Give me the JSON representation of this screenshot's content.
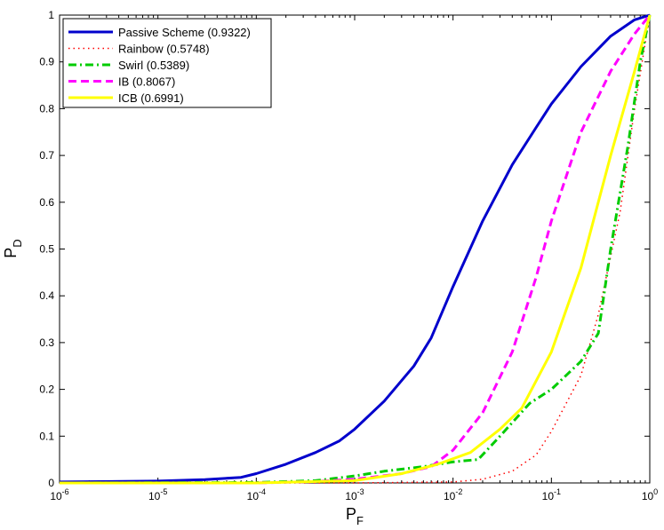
{
  "chart_data": {
    "type": "line",
    "title": "",
    "xlabel": {
      "main": "P",
      "sub": "F"
    },
    "ylabel": {
      "main": "P",
      "sub": "D"
    },
    "x_scale": "log",
    "xlim": [
      1e-06,
      1
    ],
    "ylim": [
      0,
      1
    ],
    "grid": false,
    "legend_position": "top-left",
    "x_ticks": [
      {
        "base": "10",
        "exp": "-6",
        "value": 1e-06
      },
      {
        "base": "10",
        "exp": "-5",
        "value": 1e-05
      },
      {
        "base": "10",
        "exp": "-4",
        "value": 0.0001
      },
      {
        "base": "10",
        "exp": "-3",
        "value": 0.001
      },
      {
        "base": "10",
        "exp": "-2",
        "value": 0.01
      },
      {
        "base": "10",
        "exp": "-1",
        "value": 0.1
      },
      {
        "base": "10",
        "exp": "0",
        "value": 1
      }
    ],
    "y_ticks": [
      {
        "label": "0",
        "value": 0
      },
      {
        "label": "0.1",
        "value": 0.1
      },
      {
        "label": "0.2",
        "value": 0.2
      },
      {
        "label": "0.3",
        "value": 0.3
      },
      {
        "label": "0.4",
        "value": 0.4
      },
      {
        "label": "0.5",
        "value": 0.5
      },
      {
        "label": "0.6",
        "value": 0.6
      },
      {
        "label": "0.7",
        "value": 0.7
      },
      {
        "label": "0.8",
        "value": 0.8
      },
      {
        "label": "0.9",
        "value": 0.9
      },
      {
        "label": "1",
        "value": 1
      }
    ],
    "series": [
      {
        "name": "Passive Scheme (0.9322)",
        "color": "#0000cc",
        "style": "solid",
        "x": [
          1e-06,
          1e-05,
          3e-05,
          7e-05,
          0.0001,
          0.0002,
          0.0004,
          0.0007,
          0.001,
          0.002,
          0.004,
          0.006,
          0.01,
          0.02,
          0.04,
          0.07,
          0.1,
          0.2,
          0.4,
          0.7,
          1
        ],
        "y": [
          0.002,
          0.004,
          0.007,
          0.012,
          0.02,
          0.04,
          0.065,
          0.09,
          0.115,
          0.175,
          0.25,
          0.31,
          0.42,
          0.56,
          0.68,
          0.76,
          0.81,
          0.89,
          0.955,
          0.99,
          1.0
        ]
      },
      {
        "name": "Rainbow (0.5748)",
        "color": "#ff0000",
        "style": "dotted",
        "x": [
          1e-06,
          0.001,
          0.01,
          0.02,
          0.04,
          0.07,
          0.1,
          0.2,
          0.3,
          0.5,
          0.7,
          1
        ],
        "y": [
          0.0,
          0.0,
          0.002,
          0.008,
          0.025,
          0.06,
          0.11,
          0.23,
          0.36,
          0.58,
          0.8,
          1.0
        ]
      },
      {
        "name": "Swirl (0.5389)",
        "color": "#00cc00",
        "style": "dashdot",
        "x": [
          1e-06,
          0.0001,
          0.0004,
          0.001,
          0.002,
          0.005,
          0.01,
          0.018,
          0.03,
          0.06,
          0.1,
          0.2,
          0.3,
          0.4,
          0.6,
          0.8,
          1
        ],
        "y": [
          0.0,
          0.001,
          0.005,
          0.015,
          0.025,
          0.035,
          0.045,
          0.05,
          0.1,
          0.17,
          0.2,
          0.26,
          0.32,
          0.5,
          0.72,
          0.9,
          1.0
        ]
      },
      {
        "name": "IB (0.8067)",
        "color": "#ff00ff",
        "style": "dashed",
        "x": [
          1e-06,
          0.0001,
          0.0004,
          0.001,
          0.003,
          0.006,
          0.01,
          0.02,
          0.04,
          0.07,
          0.1,
          0.2,
          0.4,
          0.7,
          1
        ],
        "y": [
          0.0,
          0.0,
          0.003,
          0.008,
          0.02,
          0.035,
          0.07,
          0.15,
          0.28,
          0.44,
          0.56,
          0.75,
          0.88,
          0.96,
          1.0
        ]
      },
      {
        "name": "ICB (0.6991)",
        "color": "#ffff00",
        "style": "solid",
        "x": [
          1e-06,
          0.0001,
          0.001,
          0.003,
          0.007,
          0.015,
          0.03,
          0.05,
          0.1,
          0.2,
          0.4,
          0.7,
          1
        ],
        "y": [
          0.0,
          0.0,
          0.005,
          0.02,
          0.04,
          0.065,
          0.115,
          0.16,
          0.28,
          0.46,
          0.7,
          0.88,
          1.0
        ]
      }
    ]
  }
}
